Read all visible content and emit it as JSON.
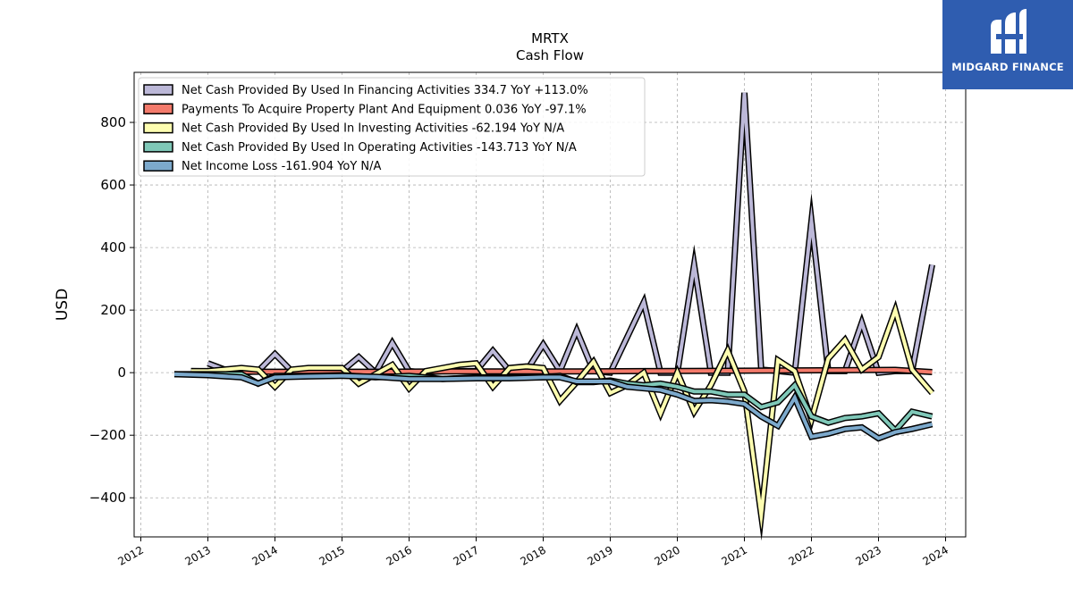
{
  "chart_data": {
    "type": "line",
    "title": "MRTX",
    "subtitle": "Cash Flow",
    "ylabel": "USD",
    "xlabel": "",
    "xlim": [
      2011.9,
      2024.3
    ],
    "ylim": [
      -525,
      960
    ],
    "x_ticks": [
      "2012",
      "2013",
      "2014",
      "2015",
      "2016",
      "2017",
      "2018",
      "2019",
      "2020",
      "2021",
      "2022",
      "2023",
      "2024"
    ],
    "y_ticks": [
      "−400",
      "−200",
      "0",
      "200",
      "400",
      "600",
      "800"
    ],
    "grid": true,
    "legend_position": "top-left",
    "series": [
      {
        "name": "Net Cash Provided By Used In Financing Activities  334.7 YoY +113.0%",
        "color": "#bcb8d8",
        "x": [
          2013.0,
          2013.25,
          2013.5,
          2013.75,
          2014.0,
          2014.25,
          2014.5,
          2014.75,
          2015.0,
          2015.25,
          2015.5,
          2015.75,
          2016.0,
          2016.25,
          2016.5,
          2016.75,
          2017.0,
          2017.25,
          2017.5,
          2017.75,
          2018.0,
          2018.25,
          2018.5,
          2018.75,
          2019.0,
          2019.5,
          2019.75,
          2020.0,
          2020.25,
          2020.5,
          2020.75,
          2021.0,
          2021.25,
          2021.5,
          2021.75,
          2022.0,
          2022.25,
          2022.5,
          2022.75,
          2023.0,
          2023.25,
          2023.5,
          2023.8
        ],
        "values": [
          30,
          10,
          0,
          5,
          60,
          5,
          0,
          5,
          5,
          50,
          0,
          95,
          5,
          0,
          5,
          5,
          5,
          70,
          5,
          5,
          90,
          5,
          135,
          5,
          0,
          225,
          0,
          0,
          345,
          0,
          0,
          895,
          10,
          5,
          0,
          485,
          5,
          5,
          160,
          0,
          5,
          5,
          345
        ]
      },
      {
        "name": "Payments To Acquire Property Plant And Equipment  0.036 YoY -97.1%",
        "color": "#f37a6b",
        "x": [
          2012.75,
          2013.5,
          2014.5,
          2015.5,
          2016.5,
          2017.5,
          2018.5,
          2019.5,
          2020.5,
          2021.5,
          2022.5,
          2023.25,
          2023.8
        ],
        "values": [
          5,
          3,
          3,
          3,
          4,
          4,
          4,
          5,
          6,
          7,
          8,
          9,
          2
        ]
      },
      {
        "name": "Net Cash Provided By Used In Investing Activities  -62.194 YoY N/A",
        "color": "#fdfdb0",
        "x": [
          2012.75,
          2013.0,
          2013.5,
          2013.75,
          2014.0,
          2014.25,
          2014.5,
          2015.0,
          2015.25,
          2015.75,
          2016.0,
          2016.25,
          2016.5,
          2016.75,
          2017.0,
          2017.25,
          2017.5,
          2017.75,
          2018.0,
          2018.25,
          2018.5,
          2018.75,
          2019.0,
          2019.25,
          2019.5,
          2019.75,
          2020.0,
          2020.25,
          2020.5,
          2020.75,
          2021.0,
          2021.25,
          2021.5,
          2021.75,
          2022.0,
          2022.25,
          2022.5,
          2022.75,
          2023.0,
          2023.25,
          2023.5,
          2023.8
        ],
        "values": [
          5,
          5,
          15,
          10,
          -45,
          10,
          15,
          15,
          -35,
          25,
          -50,
          5,
          15,
          25,
          30,
          -45,
          15,
          20,
          15,
          -90,
          -30,
          35,
          -65,
          -40,
          0,
          -130,
          0,
          -125,
          -40,
          70,
          -60,
          -455,
          40,
          5,
          -150,
          45,
          105,
          10,
          50,
          200,
          10,
          -65
        ]
      },
      {
        "name": "Net Cash Provided By Used In Operating Activities  -143.713 YoY N/A",
        "color": "#7fc8b8",
        "x": [
          2012.5,
          2013.0,
          2013.5,
          2013.75,
          2014.0,
          2014.5,
          2015.0,
          2015.5,
          2016.0,
          2016.5,
          2017.0,
          2017.5,
          2018.0,
          2018.25,
          2018.5,
          2018.75,
          2019.0,
          2019.25,
          2019.5,
          2019.75,
          2020.0,
          2020.25,
          2020.5,
          2020.75,
          2021.0,
          2021.25,
          2021.5,
          2021.75,
          2022.0,
          2022.25,
          2022.5,
          2022.75,
          2023.0,
          2023.25,
          2023.5,
          2023.8
        ],
        "values": [
          -5,
          -5,
          -5,
          -35,
          -10,
          -10,
          -8,
          -15,
          -10,
          -20,
          -15,
          -15,
          -15,
          -10,
          -30,
          -30,
          -25,
          -35,
          -40,
          -35,
          -45,
          -60,
          -60,
          -70,
          -70,
          -110,
          -95,
          -40,
          -140,
          -160,
          -145,
          -140,
          -130,
          -185,
          -125,
          -140
        ]
      },
      {
        "name": "Net Income Loss  -161.904 YoY N/A",
        "color": "#7ca9cc",
        "x": [
          2012.5,
          2013.0,
          2013.5,
          2013.75,
          2014.0,
          2014.5,
          2015.0,
          2015.5,
          2016.0,
          2016.5,
          2017.0,
          2017.5,
          2018.0,
          2018.25,
          2018.5,
          2018.75,
          2019.0,
          2019.25,
          2019.5,
          2019.75,
          2020.0,
          2020.25,
          2020.5,
          2020.75,
          2021.0,
          2021.25,
          2021.5,
          2021.75,
          2022.0,
          2022.25,
          2022.5,
          2022.75,
          2023.0,
          2023.25,
          2023.5,
          2023.8
        ],
        "values": [
          -5,
          -8,
          -15,
          -35,
          -15,
          -12,
          -10,
          -13,
          -20,
          -20,
          -18,
          -18,
          -15,
          -15,
          -28,
          -28,
          -28,
          -45,
          -50,
          -55,
          -70,
          -90,
          -88,
          -92,
          -100,
          -140,
          -170,
          -80,
          -205,
          -195,
          -180,
          -175,
          -210,
          -190,
          -180,
          -165
        ]
      }
    ]
  },
  "brand": {
    "name": "MIDGARD FINANCE",
    "icon": "midgard-logo-icon",
    "color": "#2f5db0"
  }
}
